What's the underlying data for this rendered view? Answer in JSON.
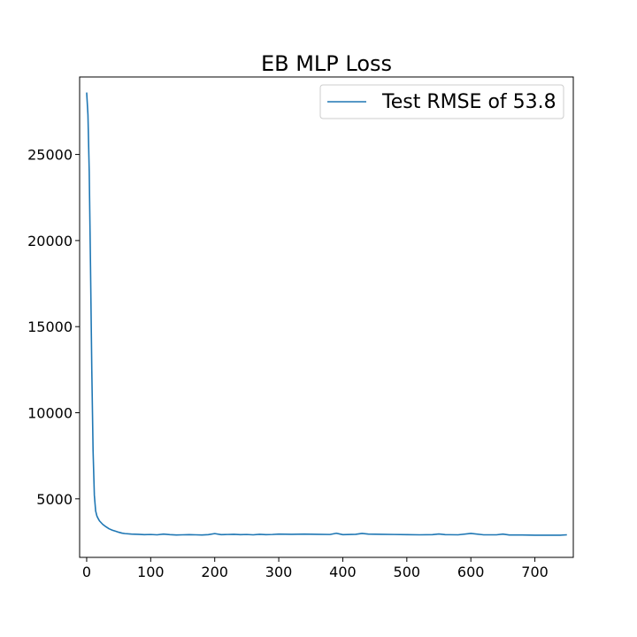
{
  "chart_data": {
    "type": "line",
    "title": "EB MLP Loss",
    "xlabel": "",
    "ylabel": "",
    "xlim": [
      -11,
      760
    ],
    "ylim": [
      1600,
      29500
    ],
    "xticks": [
      0,
      100,
      200,
      300,
      400,
      500,
      600,
      700
    ],
    "yticks": [
      5000,
      10000,
      15000,
      20000,
      25000
    ],
    "grid": false,
    "legend_position": "top-right",
    "series": [
      {
        "name": "Test RMSE of 53.8",
        "color": "#1f77b4",
        "x": [
          0,
          2,
          4,
          6,
          8,
          10,
          12,
          14,
          16,
          18,
          20,
          25,
          30,
          35,
          40,
          45,
          50,
          55,
          60,
          70,
          80,
          90,
          100,
          110,
          120,
          130,
          140,
          150,
          160,
          170,
          180,
          190,
          200,
          210,
          220,
          230,
          240,
          250,
          260,
          270,
          280,
          290,
          300,
          320,
          340,
          360,
          380,
          390,
          400,
          420,
          430,
          440,
          460,
          480,
          500,
          520,
          540,
          550,
          560,
          580,
          600,
          620,
          640,
          650,
          660,
          680,
          700,
          720,
          740,
          750
        ],
        "y": [
          28600,
          27300,
          24000,
          18500,
          12500,
          7800,
          5200,
          4300,
          4000,
          3850,
          3720,
          3520,
          3380,
          3260,
          3180,
          3120,
          3060,
          3010,
          2980,
          2950,
          2940,
          2920,
          2930,
          2910,
          2950,
          2920,
          2900,
          2910,
          2920,
          2910,
          2900,
          2920,
          2980,
          2920,
          2930,
          2940,
          2920,
          2930,
          2910,
          2940,
          2920,
          2930,
          2950,
          2940,
          2950,
          2940,
          2930,
          3000,
          2920,
          2940,
          2990,
          2950,
          2940,
          2930,
          2920,
          2910,
          2920,
          2960,
          2920,
          2910,
          2990,
          2910,
          2910,
          2950,
          2900,
          2900,
          2890,
          2890,
          2890,
          2910
        ]
      }
    ]
  }
}
